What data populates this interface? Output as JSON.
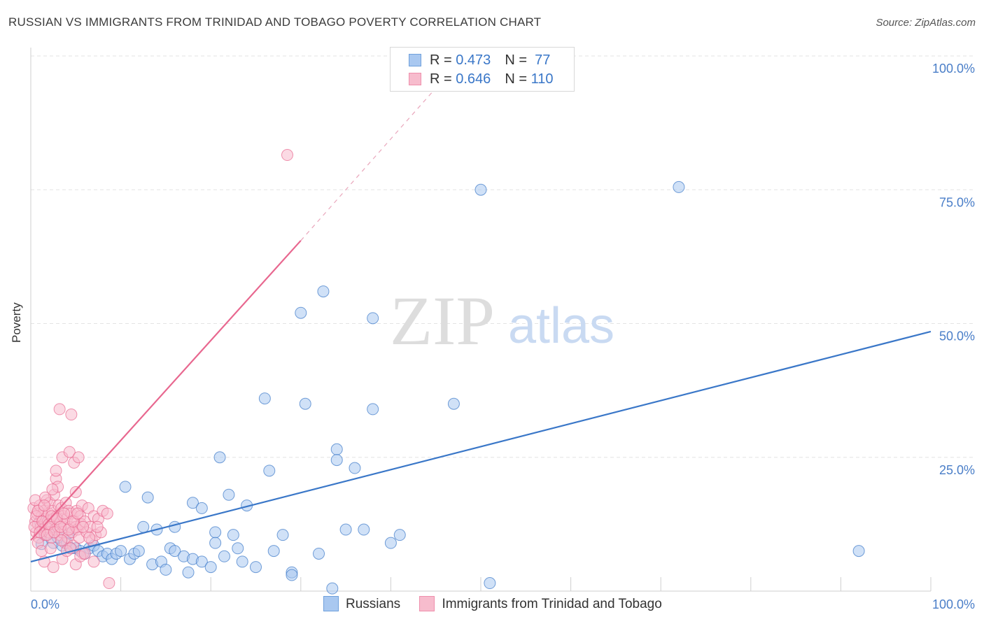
{
  "title": "RUSSIAN VS IMMIGRANTS FROM TRINIDAD AND TOBAGO POVERTY CORRELATION CHART",
  "source": "Source: ZipAtlas.com",
  "watermark": {
    "zip": "ZIP",
    "atlas": "atlas"
  },
  "legend": {
    "rows": [
      {
        "r_label": "R = ",
        "r_value": "0.473",
        "n_label": "N = ",
        "n_value": " 77",
        "color": "#a9c8f0",
        "border": "#6fa0dc"
      },
      {
        "r_label": "R = ",
        "r_value": "0.646",
        "n_label": "N = ",
        "n_value": "110",
        "color": "#f7bccd",
        "border": "#ef8fac"
      }
    ]
  },
  "colors": {
    "blue": "#3a77c8",
    "pink": "#e8678f",
    "blue_fill": "#a9c8f0",
    "pink_fill": "#f7bccd",
    "grid": "#e3e3e3",
    "tick_label": "#4a7ec8"
  },
  "chart_data": {
    "type": "scatter",
    "title": "RUSSIAN VS IMMIGRANTS FROM TRINIDAD AND TOBAGO POVERTY CORRELATION CHART",
    "xlabel": "",
    "ylabel": "Poverty",
    "xlim": [
      0,
      100
    ],
    "ylim": [
      0,
      100
    ],
    "x_tick_labels": [
      "0.0%",
      "100.0%"
    ],
    "y_tick_labels": [
      "25.0%",
      "50.0%",
      "75.0%",
      "100.0%"
    ],
    "y_ticks": [
      25,
      50,
      75,
      100
    ],
    "grid": true,
    "legend_position": "top-center",
    "series": [
      {
        "name": "Russians",
        "color": "#3a77c8",
        "trendline": {
          "x": [
            0,
            100
          ],
          "y": [
            5.5,
            48.5
          ],
          "dashed_extension": false
        },
        "points": [
          [
            1.5,
            10.5
          ],
          [
            2.5,
            9
          ],
          [
            3.5,
            8.5
          ],
          [
            4,
            9
          ],
          [
            4.5,
            8
          ],
          [
            5,
            8
          ],
          [
            5.5,
            7.5
          ],
          [
            6,
            7
          ],
          [
            6.5,
            8
          ],
          [
            7,
            8.5
          ],
          [
            7.5,
            7.5
          ],
          [
            8,
            6.5
          ],
          [
            8.5,
            7
          ],
          [
            9,
            6
          ],
          [
            9.5,
            7
          ],
          [
            10,
            7.5
          ],
          [
            10.5,
            19.5
          ],
          [
            11,
            6
          ],
          [
            11.5,
            7
          ],
          [
            12,
            7.5
          ],
          [
            12.5,
            12
          ],
          [
            13,
            17.5
          ],
          [
            13.5,
            5
          ],
          [
            14,
            11.5
          ],
          [
            14.5,
            5.5
          ],
          [
            15,
            4
          ],
          [
            15.5,
            8
          ],
          [
            16,
            12
          ],
          [
            16,
            7.5
          ],
          [
            17,
            6.5
          ],
          [
            17.5,
            3.5
          ],
          [
            18,
            16.5
          ],
          [
            18,
            6
          ],
          [
            19,
            15.5
          ],
          [
            19,
            5.5
          ],
          [
            20,
            4.5
          ],
          [
            20.5,
            11
          ],
          [
            20.5,
            9
          ],
          [
            21,
            25
          ],
          [
            21.5,
            6.5
          ],
          [
            22,
            18
          ],
          [
            22.5,
            10.5
          ],
          [
            23,
            8
          ],
          [
            23.5,
            5.5
          ],
          [
            24,
            16
          ],
          [
            25,
            4.5
          ],
          [
            26,
            36
          ],
          [
            26.5,
            22.5
          ],
          [
            27,
            7.5
          ],
          [
            28,
            10.5
          ],
          [
            29,
            3.5
          ],
          [
            29,
            3
          ],
          [
            30.5,
            35
          ],
          [
            32,
            7
          ],
          [
            32.5,
            56
          ],
          [
            33.5,
            0.5
          ],
          [
            34,
            26.5
          ],
          [
            34,
            24.5
          ],
          [
            35,
            11.5
          ],
          [
            36,
            23
          ],
          [
            37,
            11.5
          ],
          [
            38,
            51
          ],
          [
            38,
            34
          ],
          [
            40,
            9
          ],
          [
            41,
            10.5
          ],
          [
            47,
            35
          ],
          [
            50,
            75
          ],
          [
            51,
            1.5
          ],
          [
            72,
            75.5
          ],
          [
            92,
            7.5
          ],
          [
            30,
            52
          ],
          [
            1,
            13
          ],
          [
            2,
            11
          ],
          [
            3,
            10
          ],
          [
            1.2,
            8.8
          ],
          [
            2.8,
            12.5
          ],
          [
            4.2,
            10.8
          ]
        ]
      },
      {
        "name": "Immigrants from Trinidad and Tobago",
        "color": "#e8678f",
        "trendline": {
          "x": [
            0,
            30
          ],
          "y": [
            9.5,
            65.5
          ],
          "dashed_extension": true,
          "dashed_to": [
            45,
            94
          ]
        },
        "points": [
          [
            0.3,
            15.5
          ],
          [
            0.5,
            13
          ],
          [
            0.6,
            11
          ],
          [
            0.7,
            14.5
          ],
          [
            0.8,
            12.5
          ],
          [
            0.9,
            10
          ],
          [
            1,
            16
          ],
          [
            1.1,
            12
          ],
          [
            1.2,
            14
          ],
          [
            1.3,
            11.5
          ],
          [
            1.4,
            13.5
          ],
          [
            1.5,
            15
          ],
          [
            1.6,
            10.5
          ],
          [
            1.7,
            12
          ],
          [
            1.8,
            17
          ],
          [
            1.9,
            13
          ],
          [
            2,
            11
          ],
          [
            2,
            14.5
          ],
          [
            2.1,
            16.5
          ],
          [
            2.2,
            12.5
          ],
          [
            2.3,
            10
          ],
          [
            2.4,
            15
          ],
          [
            2.5,
            13.5
          ],
          [
            2.6,
            18
          ],
          [
            2.7,
            11.5
          ],
          [
            2.8,
            21
          ],
          [
            2.9,
            14
          ],
          [
            3,
            12
          ],
          [
            3,
            19.5
          ],
          [
            3.1,
            16
          ],
          [
            3.2,
            10.5
          ],
          [
            3.3,
            13
          ],
          [
            3.4,
            15.5
          ],
          [
            3.5,
            25
          ],
          [
            3.5,
            11
          ],
          [
            3.6,
            14
          ],
          [
            3.7,
            12.5
          ],
          [
            3.8,
            9
          ],
          [
            3.9,
            16.5
          ],
          [
            4,
            13.5
          ],
          [
            4.1,
            10
          ],
          [
            4.2,
            15
          ],
          [
            4.3,
            26
          ],
          [
            4.4,
            12
          ],
          [
            4.5,
            14.5
          ],
          [
            4.6,
            11
          ],
          [
            4.7,
            8.5
          ],
          [
            4.8,
            24
          ],
          [
            4.9,
            13
          ],
          [
            5,
            18.5
          ],
          [
            5,
            12
          ],
          [
            5.1,
            15
          ],
          [
            5.2,
            11.5
          ],
          [
            5.3,
            25
          ],
          [
            5.4,
            10
          ],
          [
            5.5,
            14
          ],
          [
            5.6,
            12.5
          ],
          [
            5.7,
            16
          ],
          [
            5.8,
            7
          ],
          [
            6,
            13
          ],
          [
            6.2,
            11
          ],
          [
            6.4,
            15.5
          ],
          [
            6.6,
            12
          ],
          [
            6.8,
            9.5
          ],
          [
            7,
            14
          ],
          [
            7.2,
            10.5
          ],
          [
            7.5,
            13.5
          ],
          [
            7.8,
            11
          ],
          [
            8,
            15
          ],
          [
            8.5,
            14.5
          ],
          [
            8.7,
            1.5
          ],
          [
            3.2,
            34
          ],
          [
            4.5,
            33
          ],
          [
            28.5,
            81.5
          ],
          [
            1.5,
            5.5
          ],
          [
            2.5,
            4.5
          ],
          [
            3.5,
            6
          ],
          [
            4,
            7.5
          ],
          [
            5,
            5
          ],
          [
            5.5,
            6.5
          ],
          [
            6,
            7
          ],
          [
            7,
            5.5
          ],
          [
            0.8,
            9
          ],
          [
            1.2,
            7.5
          ],
          [
            2.2,
            8
          ],
          [
            3.4,
            9.5
          ],
          [
            4.4,
            8
          ],
          [
            0.5,
            17
          ],
          [
            1.6,
            17.5
          ],
          [
            2.4,
            19
          ],
          [
            2.8,
            22.5
          ],
          [
            6.5,
            10
          ],
          [
            7.4,
            12
          ],
          [
            0.4,
            12
          ],
          [
            0.6,
            14
          ],
          [
            0.8,
            15
          ],
          [
            1,
            11
          ],
          [
            1.3,
            13
          ],
          [
            1.5,
            16
          ],
          [
            1.8,
            10.5
          ],
          [
            2,
            12.5
          ],
          [
            2.3,
            14
          ],
          [
            2.6,
            11
          ],
          [
            2.9,
            13.5
          ],
          [
            3.3,
            12
          ],
          [
            3.7,
            14.5
          ],
          [
            4.2,
            11.5
          ],
          [
            4.7,
            13
          ],
          [
            5.2,
            14.5
          ],
          [
            5.8,
            12
          ]
        ]
      }
    ]
  },
  "bottom_legend": [
    {
      "label": "Russians",
      "color": "#a9c8f0",
      "border": "#6fa0dc"
    },
    {
      "label": "Immigrants from Trinidad and Tobago",
      "color": "#f7bccd",
      "border": "#ef8fac"
    }
  ]
}
